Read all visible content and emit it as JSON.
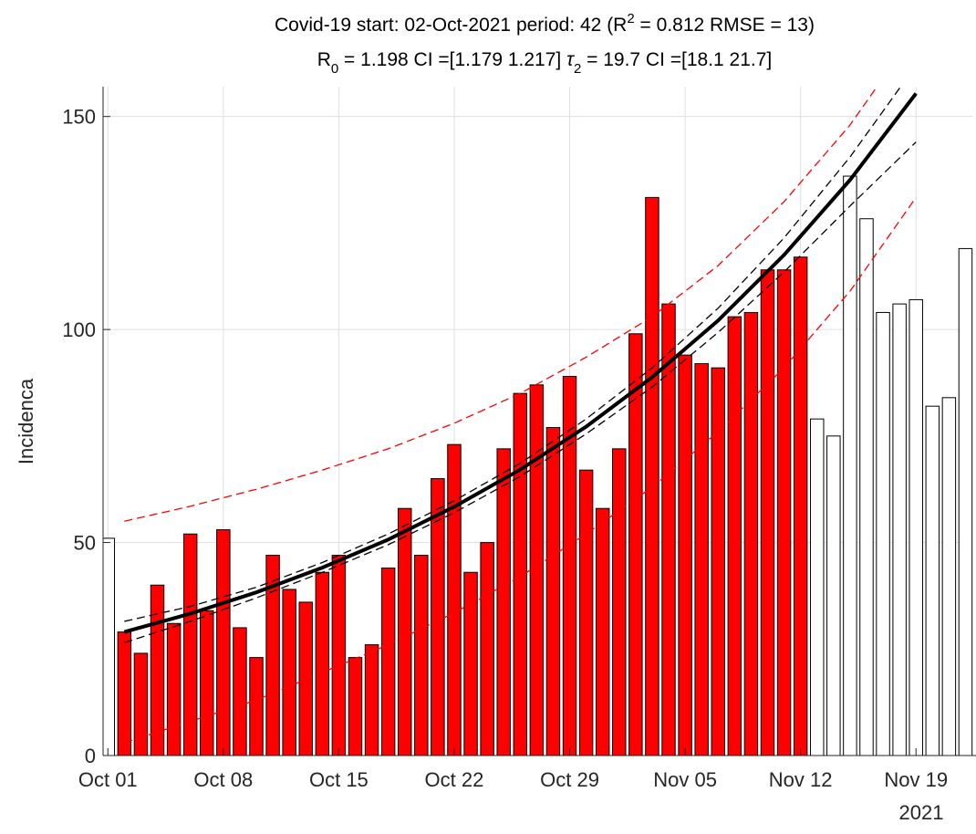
{
  "chart_data": {
    "type": "bar",
    "title_lines": [
      [
        "Covid-19 start: 02-Oct-2021 period: 42 (R",
        "2",
        " = 0.812  RMSE = 13)"
      ],
      [
        "R",
        "0",
        " = 1.198  CI =[1.179 1.217]  ",
        "τ",
        "2",
        " = 19.7  CI =[18.1 21.7]"
      ]
    ],
    "ylabel": "Incidenca",
    "year_label": "2021",
    "x": [
      "2021-10-01",
      "2021-10-02",
      "2021-10-03",
      "2021-10-04",
      "2021-10-05",
      "2021-10-06",
      "2021-10-07",
      "2021-10-08",
      "2021-10-09",
      "2021-10-10",
      "2021-10-11",
      "2021-10-12",
      "2021-10-13",
      "2021-10-14",
      "2021-10-15",
      "2021-10-16",
      "2021-10-17",
      "2021-10-18",
      "2021-10-19",
      "2021-10-20",
      "2021-10-21",
      "2021-10-22",
      "2021-10-23",
      "2021-10-24",
      "2021-10-25",
      "2021-10-26",
      "2021-10-27",
      "2021-10-28",
      "2021-10-29",
      "2021-10-30",
      "2021-10-31",
      "2021-11-01",
      "2021-11-02",
      "2021-11-03",
      "2021-11-04",
      "2021-11-05",
      "2021-11-06",
      "2021-11-07",
      "2021-11-08",
      "2021-11-09",
      "2021-11-10",
      "2021-11-11",
      "2021-11-12",
      "2021-11-13",
      "2021-11-14",
      "2021-11-15",
      "2021-11-16",
      "2021-11-17",
      "2021-11-18",
      "2021-11-19",
      "2021-11-20",
      "2021-11-21",
      "2021-11-22"
    ],
    "values": [
      51,
      29,
      24,
      40,
      31,
      52,
      34,
      53,
      30,
      23,
      47,
      39,
      36,
      43,
      47,
      23,
      26,
      44,
      58,
      47,
      65,
      73,
      43,
      50,
      72,
      85,
      87,
      77,
      89,
      67,
      58,
      72,
      99,
      131,
      106,
      94,
      92,
      91,
      103,
      104,
      114,
      114,
      117,
      79,
      75,
      136,
      126,
      104,
      106,
      107,
      82,
      84,
      119
    ],
    "colors": [
      "#ffffff",
      "#ff0000",
      "#ff0000",
      "#ff0000",
      "#ff0000",
      "#ff0000",
      "#ff0000",
      "#ff0000",
      "#ff0000",
      "#ff0000",
      "#ff0000",
      "#ff0000",
      "#ff0000",
      "#ff0000",
      "#ff0000",
      "#ff0000",
      "#ff0000",
      "#ff0000",
      "#ff0000",
      "#ff0000",
      "#ff0000",
      "#ff0000",
      "#ff0000",
      "#ff0000",
      "#ff0000",
      "#ff0000",
      "#ff0000",
      "#ff0000",
      "#ff0000",
      "#ff0000",
      "#ff0000",
      "#ff0000",
      "#ff0000",
      "#ff0000",
      "#ff0000",
      "#ff0000",
      "#ff0000",
      "#ff0000",
      "#ff0000",
      "#ff0000",
      "#ff0000",
      "#ff0000",
      "#ff0000",
      "#ffffff",
      "#ffffff",
      "#ffffff",
      "#ffffff",
      "#ffffff",
      "#ffffff",
      "#ffffff",
      "#ffffff",
      "#ffffff",
      "#ffffff"
    ],
    "curves": [
      {
        "color": "#ff0000",
        "dashed": true,
        "x": [
          "2021-10-02",
          "2021-10-06",
          "2021-10-10",
          "2021-10-14",
          "2021-10-18",
          "2021-10-22",
          "2021-10-26",
          "2021-10-30",
          "2021-11-03",
          "2021-11-07",
          "2021-11-11",
          "2021-11-15",
          "2021-11-19"
        ],
        "values": [
          55,
          58.5,
          62.5,
          67,
          72,
          78,
          85,
          93.5,
          103,
          115,
          130,
          148,
          170
        ]
      },
      {
        "color": "#ff0000",
        "dashed": true,
        "x": [
          "2021-10-02",
          "2021-10-06",
          "2021-10-10",
          "2021-10-14",
          "2021-10-18",
          "2021-10-22",
          "2021-10-26",
          "2021-10-30",
          "2021-11-03",
          "2021-11-07",
          "2021-11-11",
          "2021-11-15",
          "2021-11-19"
        ],
        "values": [
          3,
          8,
          13,
          19.5,
          26,
          33.5,
          42,
          52,
          63,
          76,
          91,
          109,
          131
        ]
      },
      {
        "color": "#000000",
        "dashed": true,
        "x": [
          "2021-10-02",
          "2021-10-06",
          "2021-10-10",
          "2021-10-14",
          "2021-10-18",
          "2021-10-22",
          "2021-10-26",
          "2021-10-30",
          "2021-11-03",
          "2021-11-07",
          "2021-11-11",
          "2021-11-15",
          "2021-11-19"
        ],
        "values": [
          31.5,
          35,
          39.5,
          45.3,
          52,
          59.8,
          68.6,
          79,
          91,
          105,
          121.5,
          140.5,
          162
        ]
      },
      {
        "color": "#000000",
        "dashed": true,
        "x": [
          "2021-10-02",
          "2021-10-06",
          "2021-10-10",
          "2021-10-14",
          "2021-10-18",
          "2021-10-22",
          "2021-10-26",
          "2021-10-30",
          "2021-11-03",
          "2021-11-07",
          "2021-11-11",
          "2021-11-15",
          "2021-11-19"
        ],
        "values": [
          26.5,
          31.5,
          37,
          43,
          49.5,
          57,
          65.5,
          75.5,
          86.5,
          99.3,
          113.5,
          129,
          144
        ]
      },
      {
        "color": "#000000",
        "dashed": false,
        "x": [
          "2021-10-02",
          "2021-10-06",
          "2021-10-10",
          "2021-10-14",
          "2021-10-18",
          "2021-10-22",
          "2021-10-26",
          "2021-10-30",
          "2021-11-03",
          "2021-11-07",
          "2021-11-11",
          "2021-11-15",
          "2021-11-19"
        ],
        "values": [
          29,
          33.3,
          38.3,
          44.1,
          50.7,
          58.4,
          67.1,
          77.2,
          88.8,
          102.1,
          117.5,
          135.1,
          155.4
        ]
      }
    ],
    "xlim": [
      "2021-09-30T17:00:00Z",
      "2021-11-22T10:00:00Z"
    ],
    "xticks": [
      {
        "value": "2021-10-01",
        "label": "Oct 01"
      },
      {
        "value": "2021-10-08",
        "label": "Oct 08"
      },
      {
        "value": "2021-10-15",
        "label": "Oct 15"
      },
      {
        "value": "2021-10-22",
        "label": "Oct 22"
      },
      {
        "value": "2021-10-29",
        "label": "Oct 29"
      },
      {
        "value": "2021-11-05",
        "label": "Nov 05"
      },
      {
        "value": "2021-11-12",
        "label": "Nov 12"
      },
      {
        "value": "2021-11-19",
        "label": "Nov 19"
      }
    ],
    "ylim": [
      0,
      157
    ],
    "yticks": [
      0,
      50,
      100,
      150
    ],
    "grid": true
  }
}
